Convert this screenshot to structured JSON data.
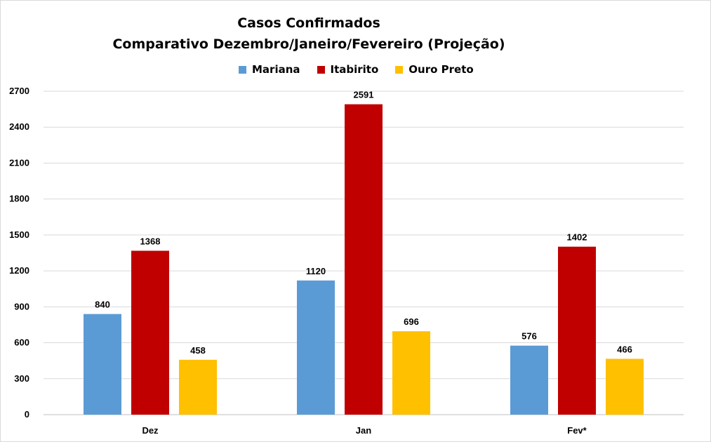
{
  "chart_data": {
    "type": "bar",
    "title": "Casos Confirmados",
    "subtitle": "Comparativo Dezembro/Janeiro/Fevereiro (Projeção)",
    "categories": [
      "Dez",
      "Jan",
      "Fev*"
    ],
    "series": [
      {
        "name": "Mariana",
        "color": "#5b9bd5",
        "values": [
          840,
          1120,
          576
        ]
      },
      {
        "name": "Itabirito",
        "color": "#c00000",
        "values": [
          1368,
          2591,
          1402
        ]
      },
      {
        "name": "Ouro Preto",
        "color": "#ffc000",
        "values": [
          458,
          696,
          466
        ]
      }
    ],
    "ylim": [
      0,
      2700
    ],
    "yticks": [
      "0",
      "300",
      "600",
      "900",
      "1200",
      "1500",
      "1800",
      "2100",
      "2400",
      "2700"
    ],
    "grid": true,
    "legend_position": "top",
    "xlabel": "",
    "ylabel": ""
  }
}
